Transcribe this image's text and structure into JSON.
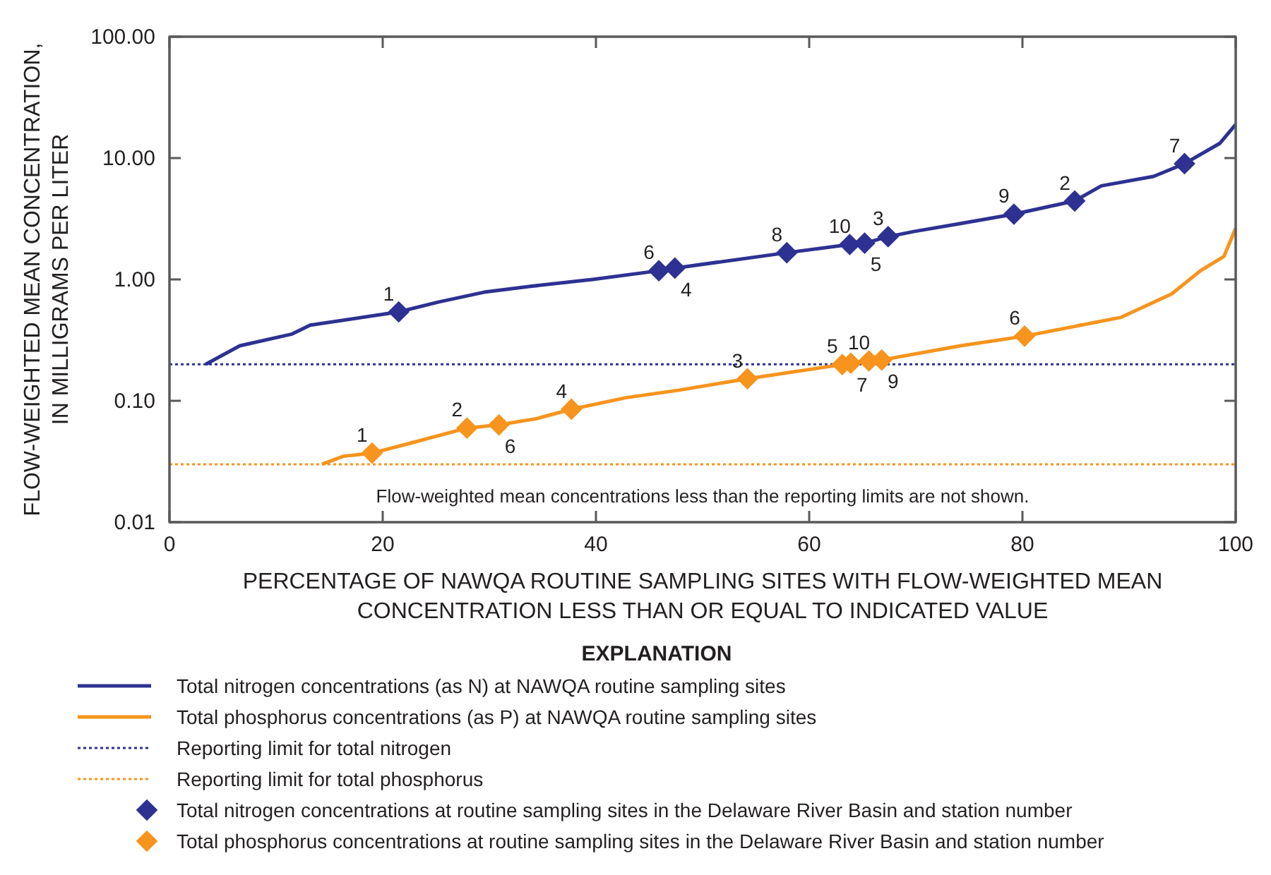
{
  "chart_data": {
    "type": "line",
    "xlabel": "PERCENTAGE OF NAWQA ROUTINE SAMPLING SITES WITH FLOW-WEIGHTED MEAN CONCENTRATION LESS THAN OR EQUAL TO INDICATED VALUE",
    "ylabel": "FLOW-WEIGHTED MEAN CONCENTRATION, IN MILLIGRAMS PER LITER",
    "legend_title": "EXPLANATION",
    "legend": "bottom",
    "log": "y",
    "xlim": [
      0,
      100
    ],
    "xticks": [
      0,
      20,
      40,
      60,
      80,
      100
    ],
    "ylim": [
      0.01,
      100
    ],
    "yticks": [
      {
        "value": 0.01,
        "label": "0.01"
      },
      {
        "value": 0.1,
        "label": "0.10"
      },
      {
        "value": 1,
        "label": "1.00"
      },
      {
        "value": 10,
        "label": "10.00"
      },
      {
        "value": 100,
        "label": "100.00"
      }
    ],
    "series": [
      {
        "name": "Total nitrogen concentrations (as N) at NAWQA routine sampling sites",
        "color": "#2e3192",
        "x": [
          3.4,
          6.6,
          11.5,
          13.2,
          21.5,
          25.2,
          29.5,
          34,
          39.7,
          45.9,
          47.4,
          57.9,
          63.8,
          65.2,
          67.4,
          69.8,
          74.2,
          79.2,
          84.9,
          87.4,
          92.3,
          95.2,
          98.5,
          100
        ],
        "values": [
          0.2,
          0.284,
          0.355,
          0.42,
          0.54,
          0.65,
          0.785,
          0.88,
          1.0,
          1.18,
          1.24,
          1.66,
          1.94,
          1.99,
          2.25,
          2.48,
          2.89,
          3.45,
          4.43,
          5.9,
          7.06,
          8.99,
          13.2,
          18.9
        ]
      },
      {
        "name": "Total phosphorus concentrations (as P) at NAWQA routine sampling sites",
        "color": "#f7941d",
        "x": [
          14.3,
          16.3,
          19.0,
          22.1,
          27.9,
          30.9,
          34.4,
          37.7,
          42.8,
          47.7,
          54.2,
          63.1,
          63.9,
          65.6,
          66.8,
          74.2,
          80.2,
          89.2,
          94.0,
          96.7,
          98.9,
          100
        ],
        "values": [
          0.03,
          0.0349,
          0.0371,
          0.0436,
          0.0596,
          0.0634,
          0.0712,
          0.0852,
          0.106,
          0.122,
          0.152,
          0.199,
          0.204,
          0.213,
          0.217,
          0.284,
          0.341,
          0.486,
          0.76,
          1.18,
          1.55,
          2.64
        ]
      },
      {
        "type": "scatter",
        "marker": "diamond",
        "name": "Total nitrogen concentrations at routine sampling sites in the Delaware River Basin and station number",
        "color": "#2e3192",
        "x": [
          21.5,
          45.9,
          47.4,
          57.9,
          63.8,
          65.2,
          67.4,
          79.2,
          84.9,
          95.2
        ],
        "values": [
          0.54,
          1.18,
          1.24,
          1.66,
          1.94,
          1.99,
          2.25,
          3.45,
          4.43,
          8.99
        ]
      },
      {
        "type": "scatter",
        "marker": "diamond",
        "name": "Total phosphorus concentrations at routine sampling sites in the Delaware River Basin and station number",
        "color": "#f7941d",
        "x": [
          19.0,
          27.9,
          30.9,
          37.7,
          54.2,
          63.1,
          63.9,
          65.6,
          66.8,
          80.2
        ],
        "values": [
          0.0371,
          0.0596,
          0.0634,
          0.0852,
          0.152,
          0.199,
          0.204,
          0.213,
          0.217,
          0.341
        ]
      }
    ],
    "ref_lines": [
      {
        "axis": "y",
        "value": 0.2,
        "label": "Reporting limit for total nitrogen",
        "color": "#2e3192",
        "line_style": "dotted"
      },
      {
        "axis": "y",
        "value": 0.03,
        "label": "Reporting limit for total phosphorus",
        "color": "#f7941d",
        "line_style": "dotted"
      }
    ],
    "annotations": [
      "Flow-weighted mean concentrations less than the reporting limits are not shown.",
      {
        "text": "1",
        "x": 21.5,
        "y": 0.54
      },
      {
        "text": "6",
        "x": 45.9,
        "y": 1.18
      },
      {
        "text": "4",
        "x": 47.4,
        "y": 1.24
      },
      {
        "text": "8",
        "x": 57.9,
        "y": 1.66
      },
      {
        "text": "10",
        "x": 63.8,
        "y": 1.94
      },
      {
        "text": "5",
        "x": 65.2,
        "y": 1.99
      },
      {
        "text": "3",
        "x": 67.4,
        "y": 2.25
      },
      {
        "text": "9",
        "x": 79.2,
        "y": 3.45
      },
      {
        "text": "2",
        "x": 84.9,
        "y": 4.43
      },
      {
        "text": "7",
        "x": 95.2,
        "y": 8.99
      },
      {
        "text": "1",
        "x": 19.0,
        "y": 0.0371
      },
      {
        "text": "2",
        "x": 27.9,
        "y": 0.0596
      },
      {
        "text": "6",
        "x": 30.9,
        "y": 0.0634
      },
      {
        "text": "4",
        "x": 37.7,
        "y": 0.0852
      },
      {
        "text": "3",
        "x": 54.2,
        "y": 0.152
      },
      {
        "text": "5",
        "x": 63.1,
        "y": 0.199
      },
      {
        "text": "7",
        "x": 63.9,
        "y": 0.204
      },
      {
        "text": "10",
        "x": 65.6,
        "y": 0.213
      },
      {
        "text": "9",
        "x": 66.8,
        "y": 0.217
      },
      {
        "text": "6",
        "x": 80.2,
        "y": 0.341
      }
    ]
  }
}
